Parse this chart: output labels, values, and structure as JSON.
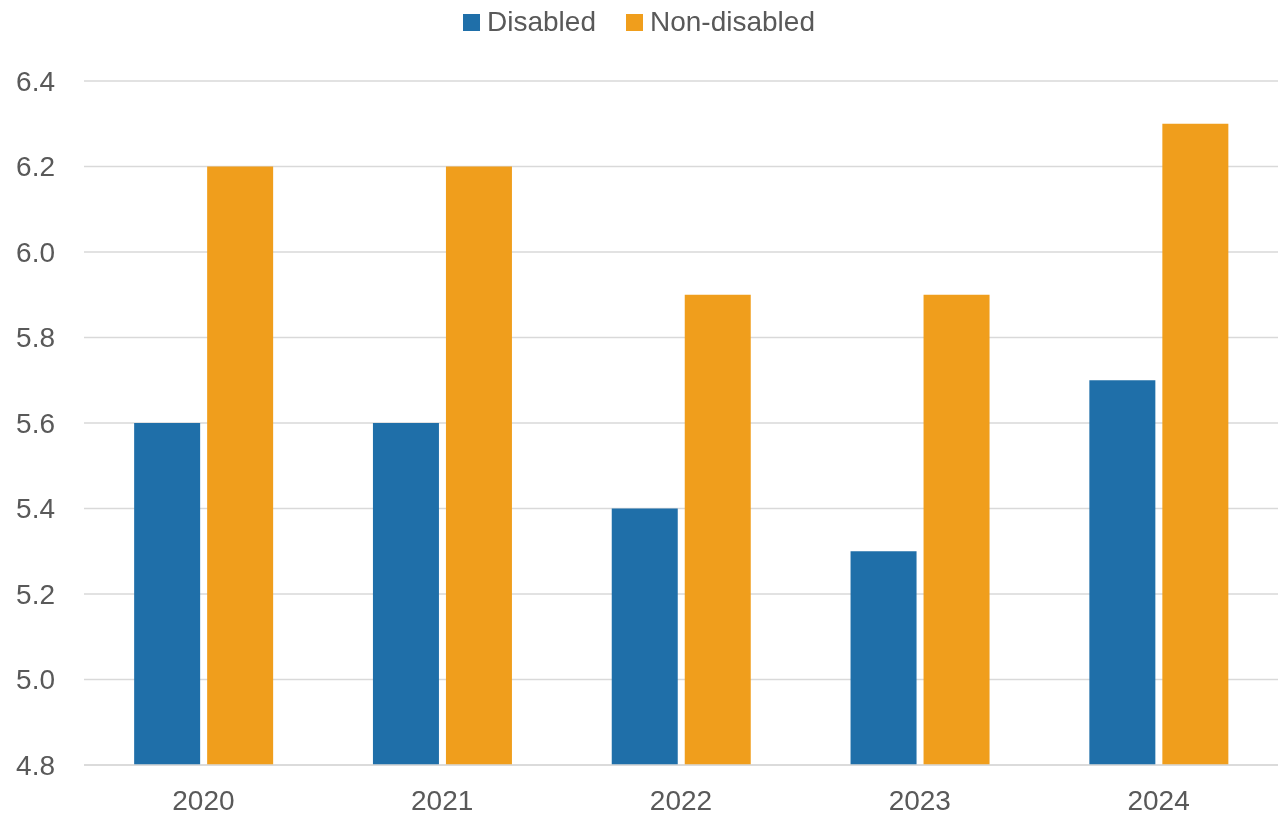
{
  "chart_data": {
    "type": "bar",
    "categories": [
      "2020",
      "2021",
      "2022",
      "2023",
      "2024"
    ],
    "series": [
      {
        "name": "Disabled",
        "color": "#1f6fa9",
        "values": [
          5.6,
          5.6,
          5.4,
          5.3,
          5.7
        ]
      },
      {
        "name": "Non-disabled",
        "color": "#f09e1c",
        "values": [
          6.2,
          6.2,
          5.9,
          5.9,
          6.3
        ]
      }
    ],
    "ylim": [
      4.8,
      6.4
    ],
    "yticks": [
      4.8,
      {
        "value": 5,
        "label": "5.0"
      },
      5.2,
      5.4,
      5.6,
      5.8,
      {
        "value": 6,
        "label": "6.0"
      },
      6.2,
      6.4
    ],
    "grid": "y",
    "legend": "top"
  }
}
